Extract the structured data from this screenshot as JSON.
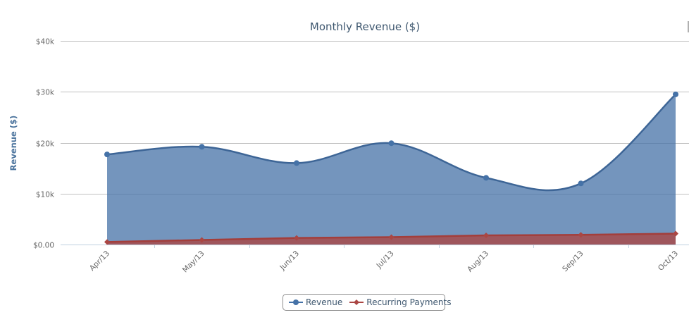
{
  "chart_data": {
    "type": "area",
    "title": "Monthly Revenue ($)",
    "xlabel": "",
    "ylabel": "Revenue ($)",
    "categories": [
      "Apr/13",
      "May/13",
      "Jun/13",
      "Jul/13",
      "Aug/13",
      "Sep/13",
      "Oct/13"
    ],
    "yticks": [
      "$0.00",
      "$10k",
      "$20k",
      "$30k",
      "$40k"
    ],
    "ylim": [
      0,
      40000
    ],
    "grid": true,
    "legend_position": "bottom-center",
    "series": [
      {
        "name": "Revenue",
        "color": "#4572a7",
        "smooth": true,
        "marker": "circle",
        "values": [
          17700,
          19200,
          16000,
          19900,
          13100,
          12000,
          29500
        ]
      },
      {
        "name": "Recurring Payments",
        "color": "#aa4643",
        "smooth": false,
        "marker": "diamond",
        "values": [
          500,
          900,
          1300,
          1450,
          1800,
          1900,
          2150
        ]
      }
    ]
  }
}
